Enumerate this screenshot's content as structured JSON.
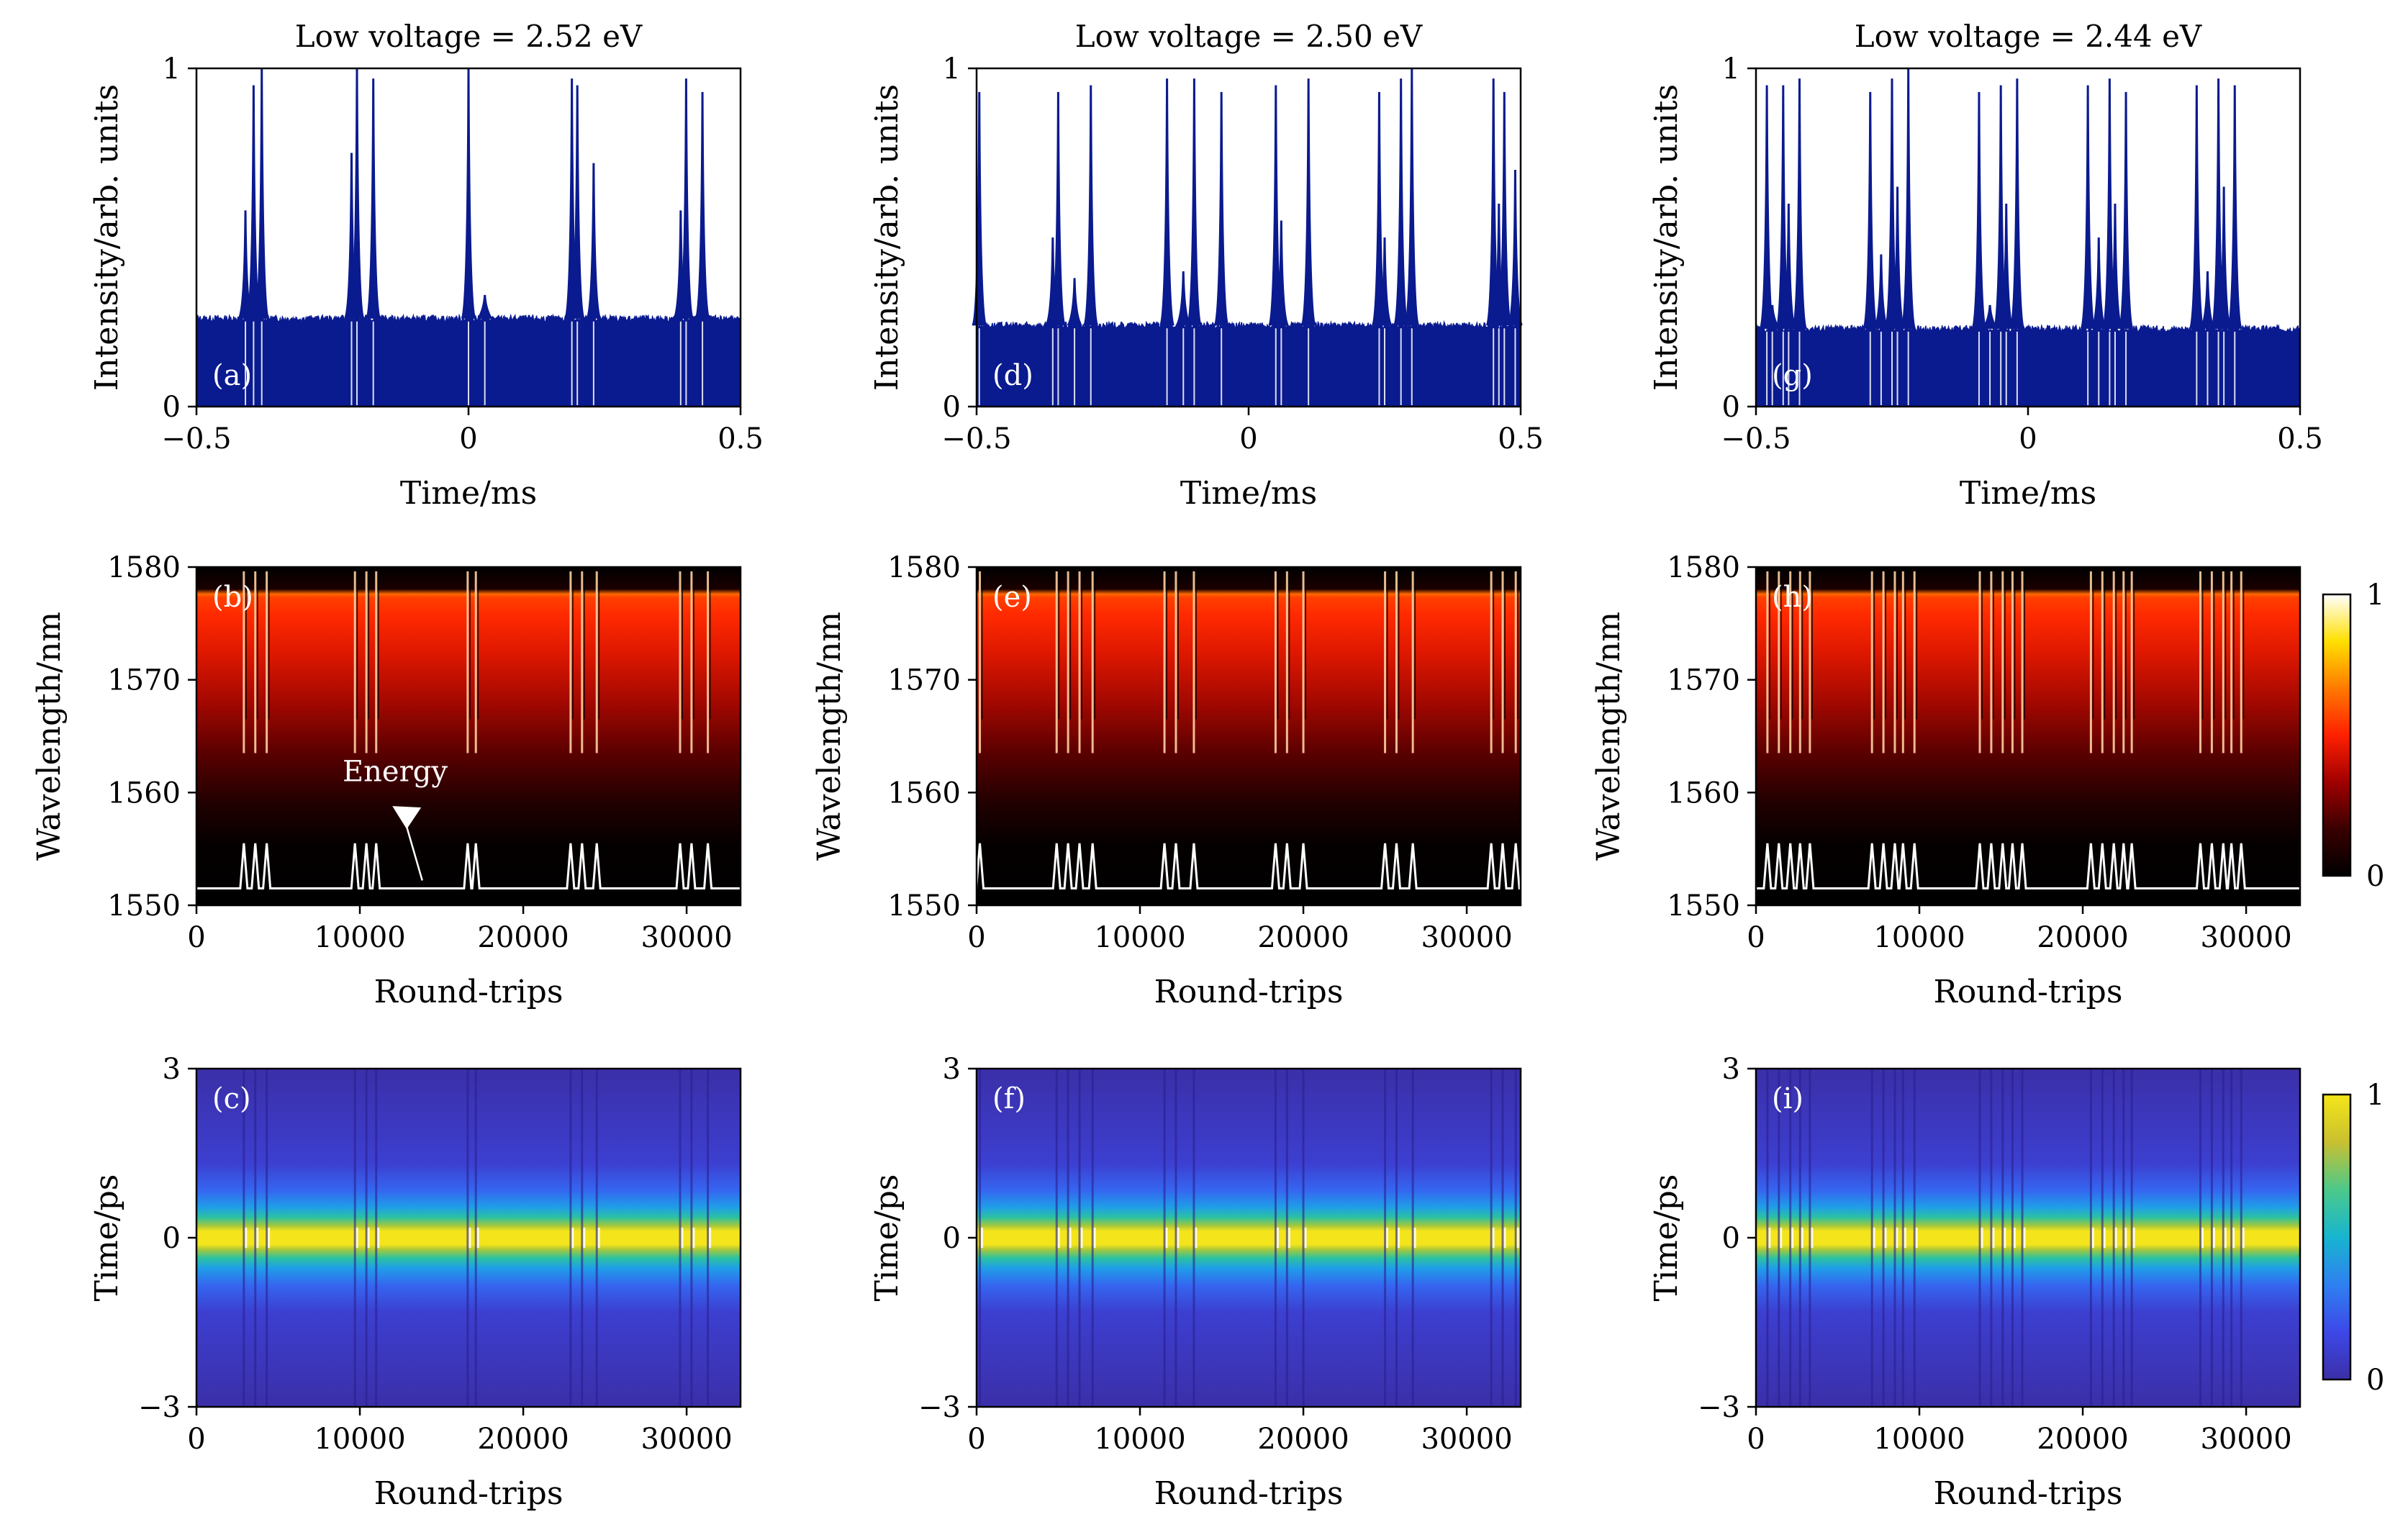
{
  "chart_data": [
    {
      "panel": "a",
      "type": "line",
      "title": "Low voltage = 2.52 eV",
      "xlabel": "Time/ms",
      "ylabel": "Intensity/arb. units",
      "xlim": [
        -0.5,
        0.5
      ],
      "ylim": [
        0,
        1
      ],
      "xticks": [
        "−0.5",
        "0",
        "0.5"
      ],
      "yticks": [
        "0",
        "1"
      ],
      "panel_label": "(a)",
      "baseline": 0.26,
      "pulse_times": [
        -0.41,
        -0.395,
        -0.38,
        -0.215,
        -0.205,
        -0.175,
        0.0,
        0.03,
        0.19,
        0.2,
        0.23,
        0.39,
        0.4,
        0.43
      ],
      "pulse_heights": [
        0.58,
        0.95,
        1.0,
        0.75,
        1.0,
        0.97,
        1.0,
        0.33,
        0.97,
        0.95,
        0.72,
        0.58,
        0.97,
        0.93
      ]
    },
    {
      "panel": "b",
      "type": "heatmap",
      "xlabel": "Round-trips",
      "ylabel": "Wavelength/nm",
      "xlim": [
        0,
        33300
      ],
      "ylim": [
        1550,
        1580
      ],
      "xticks": [
        "0",
        "10000",
        "20000",
        "30000"
      ],
      "yticks": [
        "1550",
        "1560",
        "1570",
        "1580"
      ],
      "panel_label": "(b)",
      "annotation": "Energy",
      "events": [
        2900,
        3600,
        4300,
        9700,
        10400,
        11000,
        16600,
        17100,
        22900,
        23600,
        24500,
        29600,
        30300,
        31300
      ]
    },
    {
      "panel": "c",
      "type": "heatmap",
      "xlabel": "Round-trips",
      "ylabel": "Time/ps",
      "xlim": [
        0,
        33300
      ],
      "ylim": [
        -3,
        3
      ],
      "xticks": [
        "0",
        "10000",
        "20000",
        "30000"
      ],
      "yticks": [
        "−3",
        "0",
        "3"
      ],
      "panel_label": "(c)",
      "events": [
        2900,
        3600,
        4300,
        9700,
        10400,
        11000,
        16600,
        17100,
        22900,
        23600,
        24500,
        29600,
        30300,
        31300
      ]
    },
    {
      "panel": "d",
      "type": "line",
      "title": "Low voltage = 2.50 eV",
      "xlabel": "Time/ms",
      "ylabel": "Intensity/arb. units",
      "xlim": [
        -0.5,
        0.5
      ],
      "ylim": [
        0,
        1
      ],
      "xticks": [
        "−0.5",
        "0",
        "0.5"
      ],
      "yticks": [
        "0",
        "1"
      ],
      "panel_label": "(d)",
      "baseline": 0.24,
      "pulse_times": [
        -0.495,
        -0.36,
        -0.35,
        -0.32,
        -0.29,
        -0.15,
        -0.12,
        -0.1,
        -0.05,
        0.05,
        0.06,
        0.11,
        0.24,
        0.25,
        0.28,
        0.3,
        0.45,
        0.46,
        0.47,
        0.49
      ],
      "pulse_heights": [
        0.93,
        0.5,
        0.93,
        0.38,
        0.95,
        0.97,
        0.4,
        0.97,
        0.93,
        0.95,
        0.55,
        0.97,
        0.93,
        0.5,
        0.97,
        1.0,
        0.97,
        0.6,
        0.93,
        0.7
      ]
    },
    {
      "panel": "e",
      "type": "heatmap",
      "xlabel": "Round-trips",
      "ylabel": "Wavelength/nm",
      "xlim": [
        0,
        33300
      ],
      "ylim": [
        1550,
        1580
      ],
      "xticks": [
        "0",
        "10000",
        "20000",
        "30000"
      ],
      "yticks": [
        "1550",
        "1560",
        "1570",
        "1580"
      ],
      "panel_label": "(e)",
      "events": [
        200,
        4900,
        5600,
        6300,
        7100,
        11500,
        12200,
        13300,
        18300,
        19000,
        20000,
        25000,
        25700,
        26700,
        31500,
        32200,
        33000
      ]
    },
    {
      "panel": "f",
      "type": "heatmap",
      "xlabel": "Round-trips",
      "ylabel": "Time/ps",
      "xlim": [
        0,
        33300
      ],
      "ylim": [
        -3,
        3
      ],
      "xticks": [
        "0",
        "10000",
        "20000",
        "30000"
      ],
      "yticks": [
        "−3",
        "0",
        "3"
      ],
      "panel_label": "(f)",
      "events": [
        200,
        4900,
        5600,
        6300,
        7100,
        11500,
        12200,
        13300,
        18300,
        19000,
        20000,
        25000,
        25700,
        26700,
        31500,
        32200,
        33000
      ]
    },
    {
      "panel": "g",
      "type": "line",
      "title": "Low voltage = 2.44 eV",
      "xlabel": "Time/ms",
      "ylabel": "Intensity/arb. units",
      "xlim": [
        -0.5,
        0.5
      ],
      "ylim": [
        0,
        1
      ],
      "xticks": [
        "−0.5",
        "0",
        "0.5"
      ],
      "yticks": [
        "0",
        "1"
      ],
      "panel_label": "(g)",
      "baseline": 0.23,
      "pulse_times": [
        -0.48,
        -0.47,
        -0.45,
        -0.44,
        -0.42,
        -0.29,
        -0.27,
        -0.25,
        -0.24,
        -0.22,
        -0.09,
        -0.07,
        -0.05,
        -0.04,
        -0.02,
        0.11,
        0.13,
        0.15,
        0.16,
        0.18,
        0.31,
        0.33,
        0.35,
        0.36,
        0.38
      ],
      "pulse_heights": [
        0.95,
        0.3,
        0.95,
        0.6,
        0.97,
        0.93,
        0.45,
        0.97,
        0.65,
        1.0,
        0.93,
        0.3,
        0.95,
        0.6,
        0.97,
        0.95,
        0.5,
        0.97,
        0.6,
        0.93,
        0.95,
        0.4,
        0.97,
        0.65,
        0.95
      ]
    },
    {
      "panel": "h",
      "type": "heatmap",
      "xlabel": "Round-trips",
      "ylabel": "Wavelength/nm",
      "xlim": [
        0,
        33300
      ],
      "ylim": [
        1550,
        1580
      ],
      "xticks": [
        "0",
        "10000",
        "20000",
        "30000"
      ],
      "yticks": [
        "1550",
        "1560",
        "1570",
        "1580"
      ],
      "panel_label": "(h)",
      "events": [
        700,
        1400,
        2100,
        2700,
        3300,
        7100,
        7800,
        8500,
        9000,
        9700,
        13700,
        14400,
        15100,
        15700,
        16300,
        20500,
        21200,
        21900,
        22500,
        23000,
        27200,
        27900,
        28600,
        29100,
        29700
      ]
    },
    {
      "panel": "i",
      "type": "heatmap",
      "xlabel": "Round-trips",
      "ylabel": "Time/ps",
      "xlim": [
        0,
        33300
      ],
      "ylim": [
        -3,
        3
      ],
      "xticks": [
        "0",
        "10000",
        "20000",
        "30000"
      ],
      "yticks": [
        "−3",
        "0",
        "3"
      ],
      "panel_label": "(i)",
      "events": [
        700,
        1400,
        2100,
        2700,
        3300,
        7100,
        7800,
        8500,
        9000,
        9700,
        13700,
        14400,
        15100,
        15700,
        16300,
        20500,
        21200,
        21900,
        22500,
        23000,
        27200,
        27900,
        28600,
        29100,
        29700
      ]
    }
  ],
  "colorbars": [
    {
      "name": "wavelength-colorbar",
      "min_label": "0",
      "max_label": "1",
      "colormap": "hot"
    },
    {
      "name": "time-colorbar",
      "min_label": "0",
      "max_label": "1",
      "colormap": "parula"
    }
  ],
  "colors": {
    "trace": "#0a1a8f",
    "energy_line": "#ffffff",
    "hot_stops": [
      "#000000",
      "#3a0000",
      "#a00000",
      "#ff2000",
      "#ff7a00",
      "#ffe000",
      "#ffffff"
    ],
    "parula_stops": [
      "#3b2fa8",
      "#3d48e8",
      "#2f80f0",
      "#17b5d0",
      "#4cc98a",
      "#c8c030",
      "#f5e618"
    ]
  }
}
